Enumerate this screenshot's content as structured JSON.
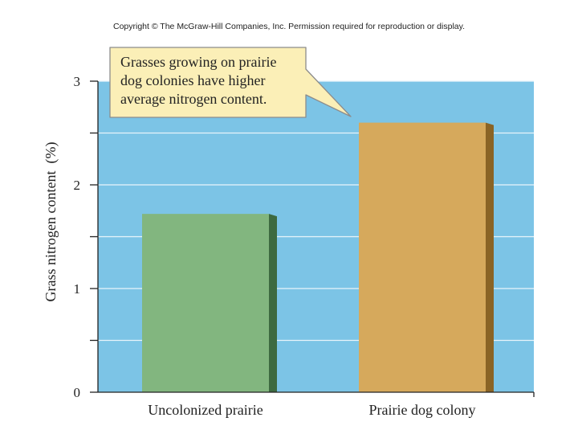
{
  "copyright": "Copyright © The McGraw-Hill Companies, Inc. Permission required for reproduction or display.",
  "colors": {
    "plot_background": "#7cc4e6",
    "gridline": "#e8f4fb",
    "bar_uncolonized": "#82b67f",
    "bar_uncolonized_side": "#3d6a40",
    "bar_colony": "#d6a95c",
    "bar_colony_side": "#8a6425",
    "callout_fill": "#fbefb7",
    "callout_border": "#8c8c8c"
  },
  "chart_data": {
    "type": "bar",
    "categories": [
      "Uncolonized prairie",
      "Prairie dog colony"
    ],
    "values": [
      1.72,
      2.6
    ],
    "ylabel": "Grass nitrogen content  (%)",
    "xlabel": "",
    "ylim": [
      0,
      3
    ],
    "yticks": [
      "0",
      "1",
      "2",
      "3"
    ],
    "grid": true,
    "annotation": {
      "lines": [
        "Grasses growing on prairie",
        "dog colonies have higher",
        "average nitrogen content."
      ],
      "points_to": "Prairie dog colony"
    }
  }
}
